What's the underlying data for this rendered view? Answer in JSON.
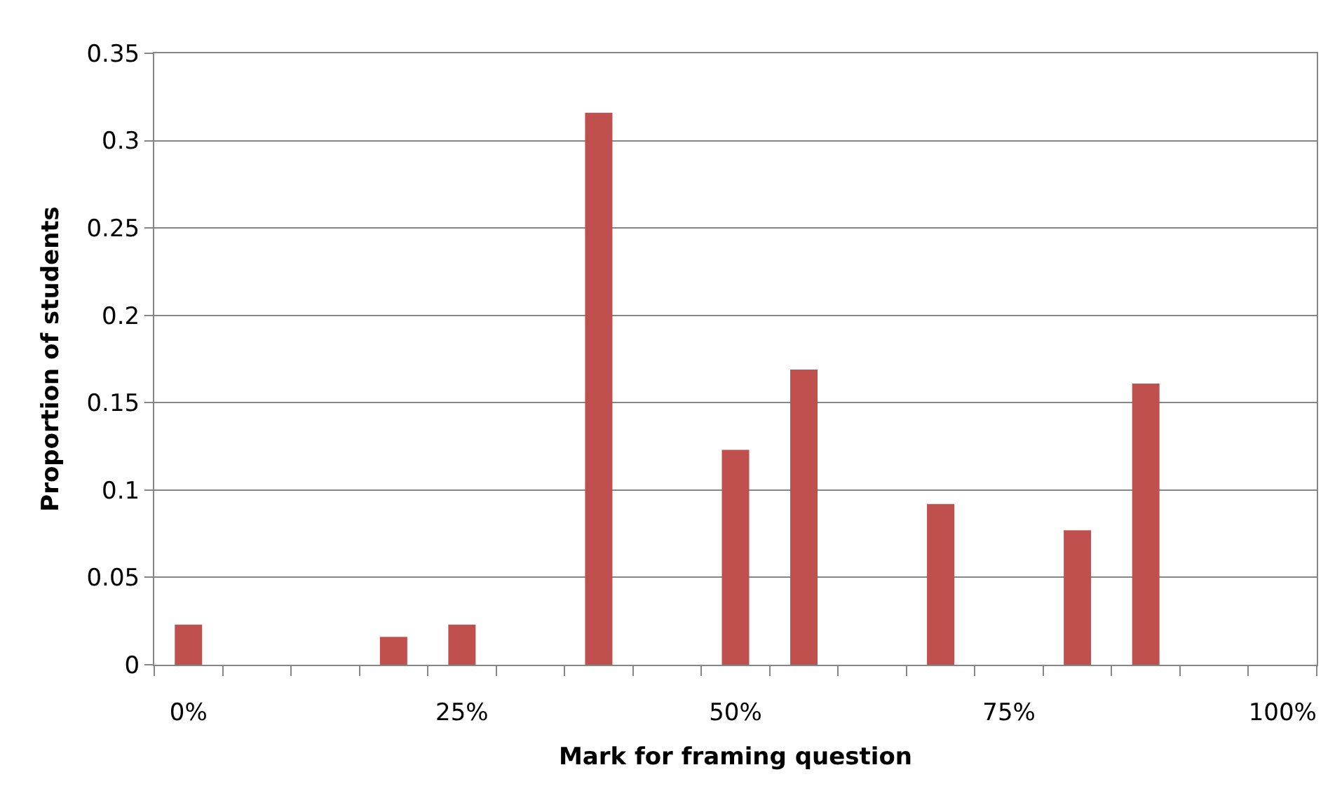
{
  "chart_data": {
    "type": "bar",
    "xlabel": "Mark for framing question",
    "ylabel": "Proportion of students",
    "categories": [
      "0%",
      null,
      null,
      null,
      "25%",
      null,
      null,
      null,
      "50%",
      null,
      null,
      null,
      "75%",
      null,
      null,
      null,
      "100%"
    ],
    "values": [
      0.023,
      0,
      0,
      0.016,
      0.023,
      0,
      0.316,
      0,
      0.123,
      0.169,
      0,
      0.092,
      0,
      0.077,
      0.161,
      0,
      0
    ],
    "color": "#c0504d",
    "ylim": [
      0,
      0.35
    ],
    "yticks": [
      0,
      0.05,
      0.1,
      0.15,
      0.2,
      0.25,
      0.3,
      0.35
    ],
    "grid": "y"
  }
}
